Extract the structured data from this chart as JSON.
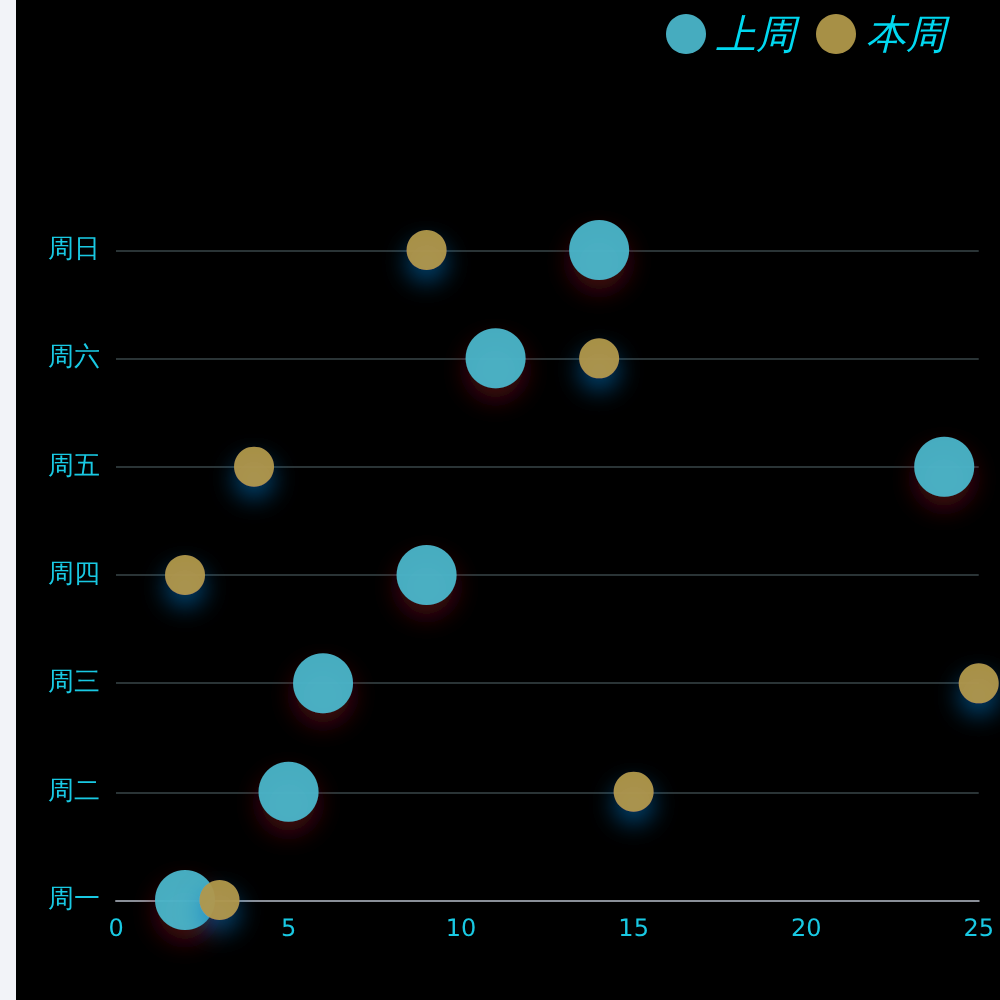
{
  "chart_data": {
    "type": "scatter",
    "orientation": "horizontal",
    "categories": [
      "周日",
      "周六",
      "周五",
      "周四",
      "周三",
      "周二",
      "周一"
    ],
    "series": [
      {
        "name": "上周",
        "color": "#4ab5c9",
        "values": [
          14,
          11,
          24,
          9,
          6,
          5,
          2
        ]
      },
      {
        "name": "本周",
        "color": "#b0984a",
        "values": [
          9,
          14,
          4,
          2,
          25,
          15,
          3
        ]
      }
    ],
    "xlim": [
      0,
      25
    ],
    "xticks": [
      0,
      5,
      10,
      15,
      20,
      25
    ],
    "grid": "y",
    "legend": "top right",
    "marker": "circle"
  }
}
